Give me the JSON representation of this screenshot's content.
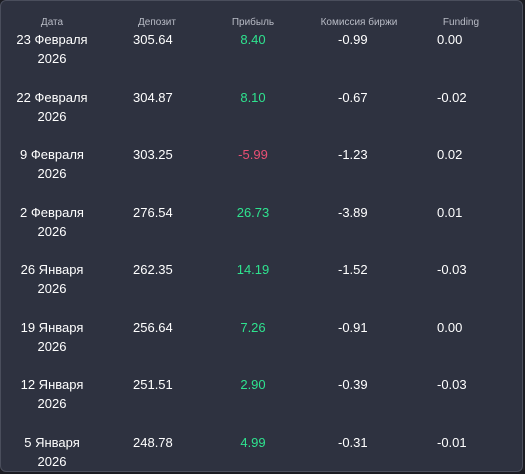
{
  "headers": {
    "date": "Дата",
    "deposit": "Депозит",
    "profit": "Прибыль",
    "commission": "Комиссия биржи",
    "funding": "Funding"
  },
  "rows": [
    {
      "date_line1": "23 Февраля",
      "date_line2": "2026",
      "deposit": "305.64",
      "profit": "8.40",
      "profit_sign": "pos",
      "commission": "-0.99",
      "funding": "0.00"
    },
    {
      "date_line1": "22 Февраля",
      "date_line2": "2026",
      "deposit": "304.87",
      "profit": "8.10",
      "profit_sign": "pos",
      "commission": "-0.67",
      "funding": "-0.02"
    },
    {
      "date_line1": "9 Февраля",
      "date_line2": "2026",
      "deposit": "303.25",
      "profit": "-5.99",
      "profit_sign": "neg",
      "commission": "-1.23",
      "funding": "0.02"
    },
    {
      "date_line1": "2 Февраля",
      "date_line2": "2026",
      "deposit": "276.54",
      "profit": "26.73",
      "profit_sign": "pos",
      "commission": "-3.89",
      "funding": "0.01"
    },
    {
      "date_line1": "26 Января",
      "date_line2": "2026",
      "deposit": "262.35",
      "profit": "14.19",
      "profit_sign": "pos",
      "commission": "-1.52",
      "funding": "-0.03"
    },
    {
      "date_line1": "19 Января",
      "date_line2": "2026",
      "deposit": "256.64",
      "profit": "7.26",
      "profit_sign": "pos",
      "commission": "-0.91",
      "funding": "0.00"
    },
    {
      "date_line1": "12 Января",
      "date_line2": "2026",
      "deposit": "251.51",
      "profit": "2.90",
      "profit_sign": "pos",
      "commission": "-0.39",
      "funding": "-0.03"
    },
    {
      "date_line1": "5 Января",
      "date_line2": "2026",
      "deposit": "248.78",
      "profit": "4.99",
      "profit_sign": "pos",
      "commission": "-0.31",
      "funding": "-0.01"
    }
  ],
  "colors": {
    "background": "#2e3240",
    "positive": "#2ee38f",
    "negative": "#ea4f74",
    "header_text": "#b9bcc6"
  }
}
